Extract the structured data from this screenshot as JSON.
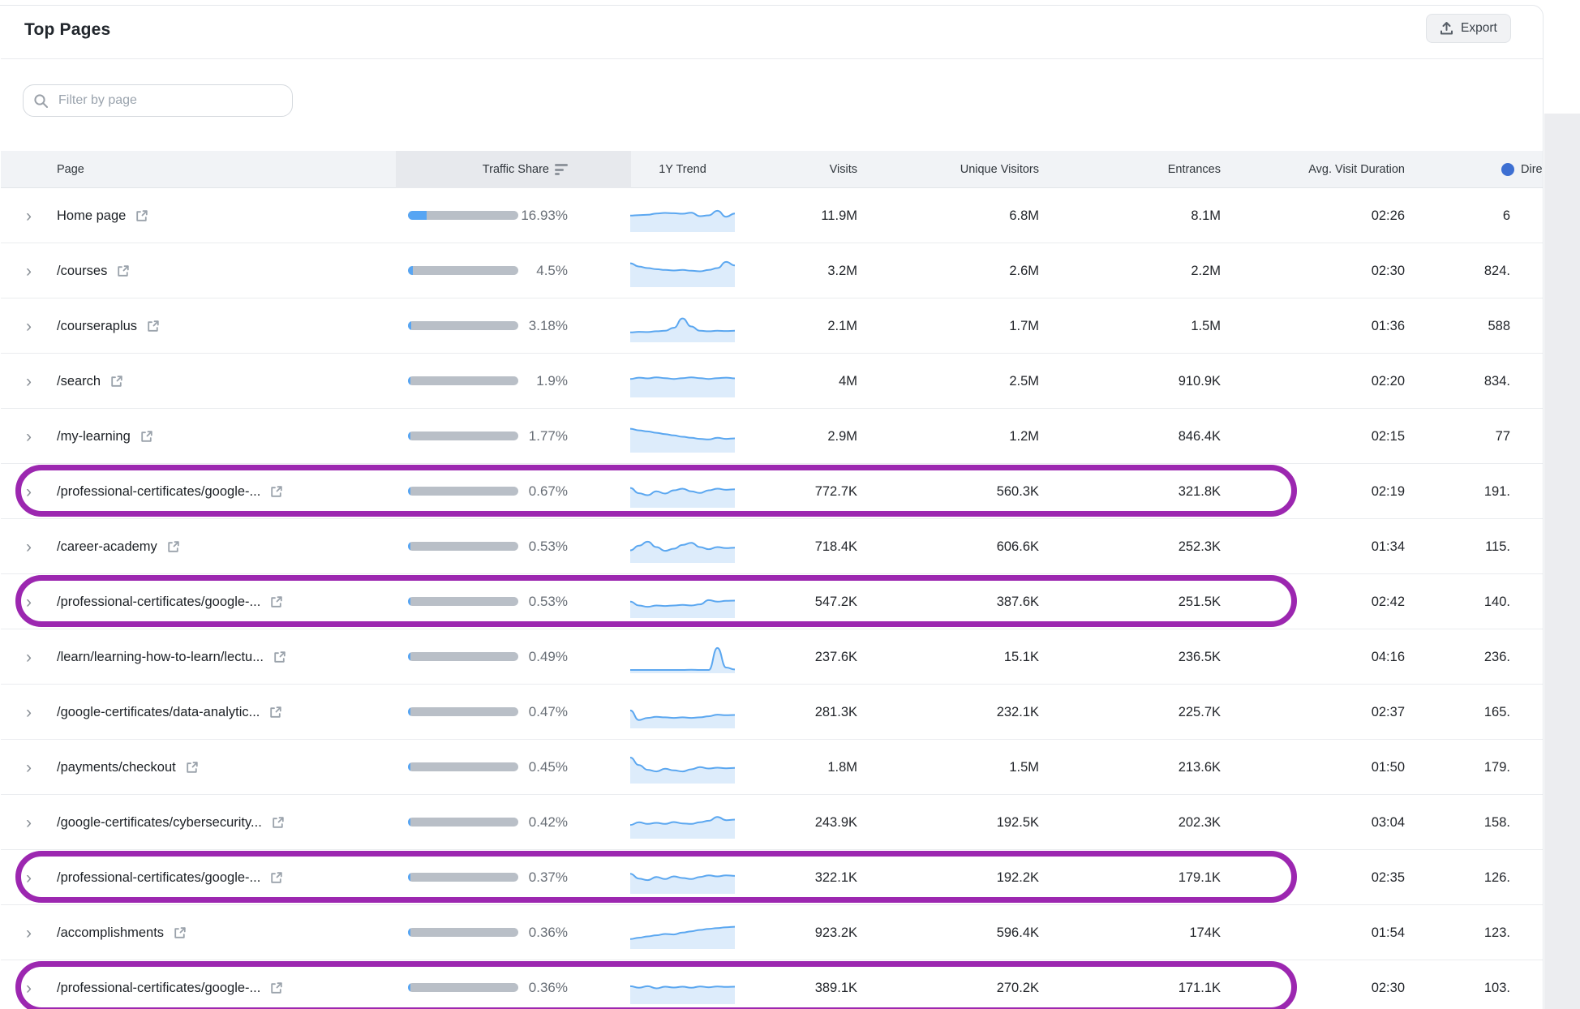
{
  "header": {
    "title": "Top Pages",
    "export_label": "Export"
  },
  "filter": {
    "placeholder": "Filter by page"
  },
  "colors": {
    "accent_blue": "#57a5f3",
    "bar_track": "#b9bfc7",
    "trend_line": "#5ba7f0",
    "trend_fill": "#ddecfb",
    "highlight_purple": "#9c27b0",
    "direct_dot_blue": "#3d6fd2",
    "header_bg": "#f1f3f6",
    "sorted_cell_bg": "#e7e9ed"
  },
  "table": {
    "columns": [
      "Page",
      "Traffic Share",
      "1Y Trend",
      "Visits",
      "Unique Visitors",
      "Entrances",
      "Avg. Visit Duration",
      "Dire"
    ],
    "sorted_column": "Traffic Share"
  },
  "rows": [
    {
      "page": "Home page",
      "traffic_share": "16.93%",
      "share_pct": 16.93,
      "visits": "11.9M",
      "unique_visitors": "6.8M",
      "entrances": "8.1M",
      "avg_visit_duration": "02:26",
      "direct": "6",
      "highlighted": false,
      "trend": [
        0.52,
        0.54,
        0.55,
        0.6,
        0.62,
        0.61,
        0.59,
        0.63,
        0.5,
        0.53,
        0.7,
        0.48,
        0.6
      ]
    },
    {
      "page": "/courses",
      "traffic_share": "4.5%",
      "share_pct": 4.5,
      "visits": "3.2M",
      "unique_visitors": "2.6M",
      "entrances": "2.2M",
      "avg_visit_duration": "02:30",
      "direct": "824.",
      "highlighted": false,
      "trend": [
        0.8,
        0.68,
        0.62,
        0.58,
        0.55,
        0.53,
        0.55,
        0.52,
        0.5,
        0.55,
        0.62,
        0.85,
        0.72
      ]
    },
    {
      "page": "/courseraplus",
      "traffic_share": "3.18%",
      "share_pct": 3.18,
      "visits": "2.1M",
      "unique_visitors": "1.7M",
      "entrances": "1.5M",
      "avg_visit_duration": "01:36",
      "direct": "588",
      "highlighted": false,
      "trend": [
        0.28,
        0.3,
        0.29,
        0.32,
        0.34,
        0.45,
        0.8,
        0.5,
        0.34,
        0.32,
        0.34,
        0.33,
        0.34
      ]
    },
    {
      "page": "/search",
      "traffic_share": "1.9%",
      "share_pct": 1.9,
      "visits": "4M",
      "unique_visitors": "2.5M",
      "entrances": "910.9K",
      "avg_visit_duration": "02:20",
      "direct": "834.",
      "highlighted": false,
      "trend": [
        0.6,
        0.65,
        0.62,
        0.66,
        0.63,
        0.6,
        0.63,
        0.66,
        0.63,
        0.6,
        0.63,
        0.65,
        0.62
      ]
    },
    {
      "page": "/my-learning",
      "traffic_share": "1.77%",
      "share_pct": 1.77,
      "visits": "2.9M",
      "unique_visitors": "1.2M",
      "entrances": "846.4K",
      "avg_visit_duration": "02:15",
      "direct": "77",
      "highlighted": false,
      "trend": [
        0.8,
        0.74,
        0.7,
        0.65,
        0.6,
        0.55,
        0.5,
        0.46,
        0.42,
        0.4,
        0.46,
        0.42,
        0.44
      ]
    },
    {
      "page": "/professional-certificates/google-...",
      "traffic_share": "0.67%",
      "share_pct": 0.67,
      "visits": "772.7K",
      "unique_visitors": "560.3K",
      "entrances": "321.8K",
      "avg_visit_duration": "02:19",
      "direct": "191.",
      "highlighted": true,
      "trend": [
        0.65,
        0.45,
        0.38,
        0.52,
        0.44,
        0.56,
        0.62,
        0.52,
        0.46,
        0.56,
        0.62,
        0.58,
        0.6
      ]
    },
    {
      "page": "/career-academy",
      "traffic_share": "0.53%",
      "share_pct": 0.53,
      "visits": "718.4K",
      "unique_visitors": "606.6K",
      "entrances": "252.3K",
      "avg_visit_duration": "01:34",
      "direct": "115.",
      "highlighted": false,
      "trend": [
        0.38,
        0.55,
        0.7,
        0.5,
        0.36,
        0.44,
        0.58,
        0.66,
        0.5,
        0.42,
        0.5,
        0.46,
        0.48
      ]
    },
    {
      "page": "/professional-certificates/google-...",
      "traffic_share": "0.53%",
      "share_pct": 0.53,
      "visits": "547.2K",
      "unique_visitors": "387.6K",
      "entrances": "251.5K",
      "avg_visit_duration": "02:42",
      "direct": "140.",
      "highlighted": true,
      "trend": [
        0.52,
        0.38,
        0.33,
        0.38,
        0.36,
        0.38,
        0.4,
        0.38,
        0.42,
        0.58,
        0.52,
        0.55,
        0.56
      ]
    },
    {
      "page": "/learn/learning-how-to-learn/lectu...",
      "traffic_share": "0.49%",
      "share_pct": 0.49,
      "visits": "237.6K",
      "unique_visitors": "15.1K",
      "entrances": "236.5K",
      "avg_visit_duration": "04:16",
      "direct": "236.",
      "highlighted": false,
      "trend": [
        0.03,
        0.03,
        0.03,
        0.03,
        0.03,
        0.03,
        0.03,
        0.04,
        0.03,
        0.03,
        0.85,
        0.12,
        0.05
      ]
    },
    {
      "page": "/google-certificates/data-analytic...",
      "traffic_share": "0.47%",
      "share_pct": 0.47,
      "visits": "281.3K",
      "unique_visitors": "232.1K",
      "entrances": "225.7K",
      "avg_visit_duration": "02:37",
      "direct": "165.",
      "highlighted": false,
      "trend": [
        0.58,
        0.22,
        0.3,
        0.34,
        0.32,
        0.3,
        0.32,
        0.3,
        0.32,
        0.36,
        0.42,
        0.4,
        0.41
      ]
    },
    {
      "page": "/payments/checkout",
      "traffic_share": "0.45%",
      "share_pct": 0.45,
      "visits": "1.8M",
      "unique_visitors": "1.5M",
      "entrances": "213.6K",
      "avg_visit_duration": "01:50",
      "direct": "179.",
      "highlighted": false,
      "trend": [
        0.88,
        0.6,
        0.42,
        0.36,
        0.46,
        0.4,
        0.36,
        0.44,
        0.52,
        0.47,
        0.5,
        0.48,
        0.49
      ]
    },
    {
      "page": "/google-certificates/cybersecurity...",
      "traffic_share": "0.42%",
      "share_pct": 0.42,
      "visits": "243.9K",
      "unique_visitors": "192.5K",
      "entrances": "202.3K",
      "avg_visit_duration": "03:04",
      "direct": "158.",
      "highlighted": false,
      "trend": [
        0.42,
        0.52,
        0.46,
        0.5,
        0.46,
        0.53,
        0.48,
        0.46,
        0.52,
        0.58,
        0.72,
        0.6,
        0.62
      ]
    },
    {
      "page": "/professional-certificates/google-...",
      "traffic_share": "0.37%",
      "share_pct": 0.37,
      "visits": "322.1K",
      "unique_visitors": "192.2K",
      "entrances": "179.1K",
      "avg_visit_duration": "02:35",
      "direct": "126.",
      "highlighted": true,
      "trend": [
        0.66,
        0.48,
        0.42,
        0.54,
        0.46,
        0.56,
        0.5,
        0.46,
        0.54,
        0.6,
        0.56,
        0.6,
        0.58
      ]
    },
    {
      "page": "/accomplishments",
      "traffic_share": "0.36%",
      "share_pct": 0.36,
      "visits": "923.2K",
      "unique_visitors": "596.4K",
      "entrances": "174K",
      "avg_visit_duration": "01:54",
      "direct": "123.",
      "highlighted": false,
      "trend": [
        0.28,
        0.33,
        0.38,
        0.42,
        0.47,
        0.45,
        0.52,
        0.57,
        0.62,
        0.66,
        0.69,
        0.72,
        0.74
      ]
    },
    {
      "page": "/professional-certificates/google-...",
      "traffic_share": "0.36%",
      "share_pct": 0.36,
      "visits": "389.1K",
      "unique_visitors": "270.2K",
      "entrances": "171.1K",
      "avg_visit_duration": "02:30",
      "direct": "103.",
      "highlighted": true,
      "trend": [
        0.58,
        0.52,
        0.58,
        0.5,
        0.56,
        0.53,
        0.56,
        0.52,
        0.57,
        0.54,
        0.57,
        0.55,
        0.56
      ]
    }
  ]
}
